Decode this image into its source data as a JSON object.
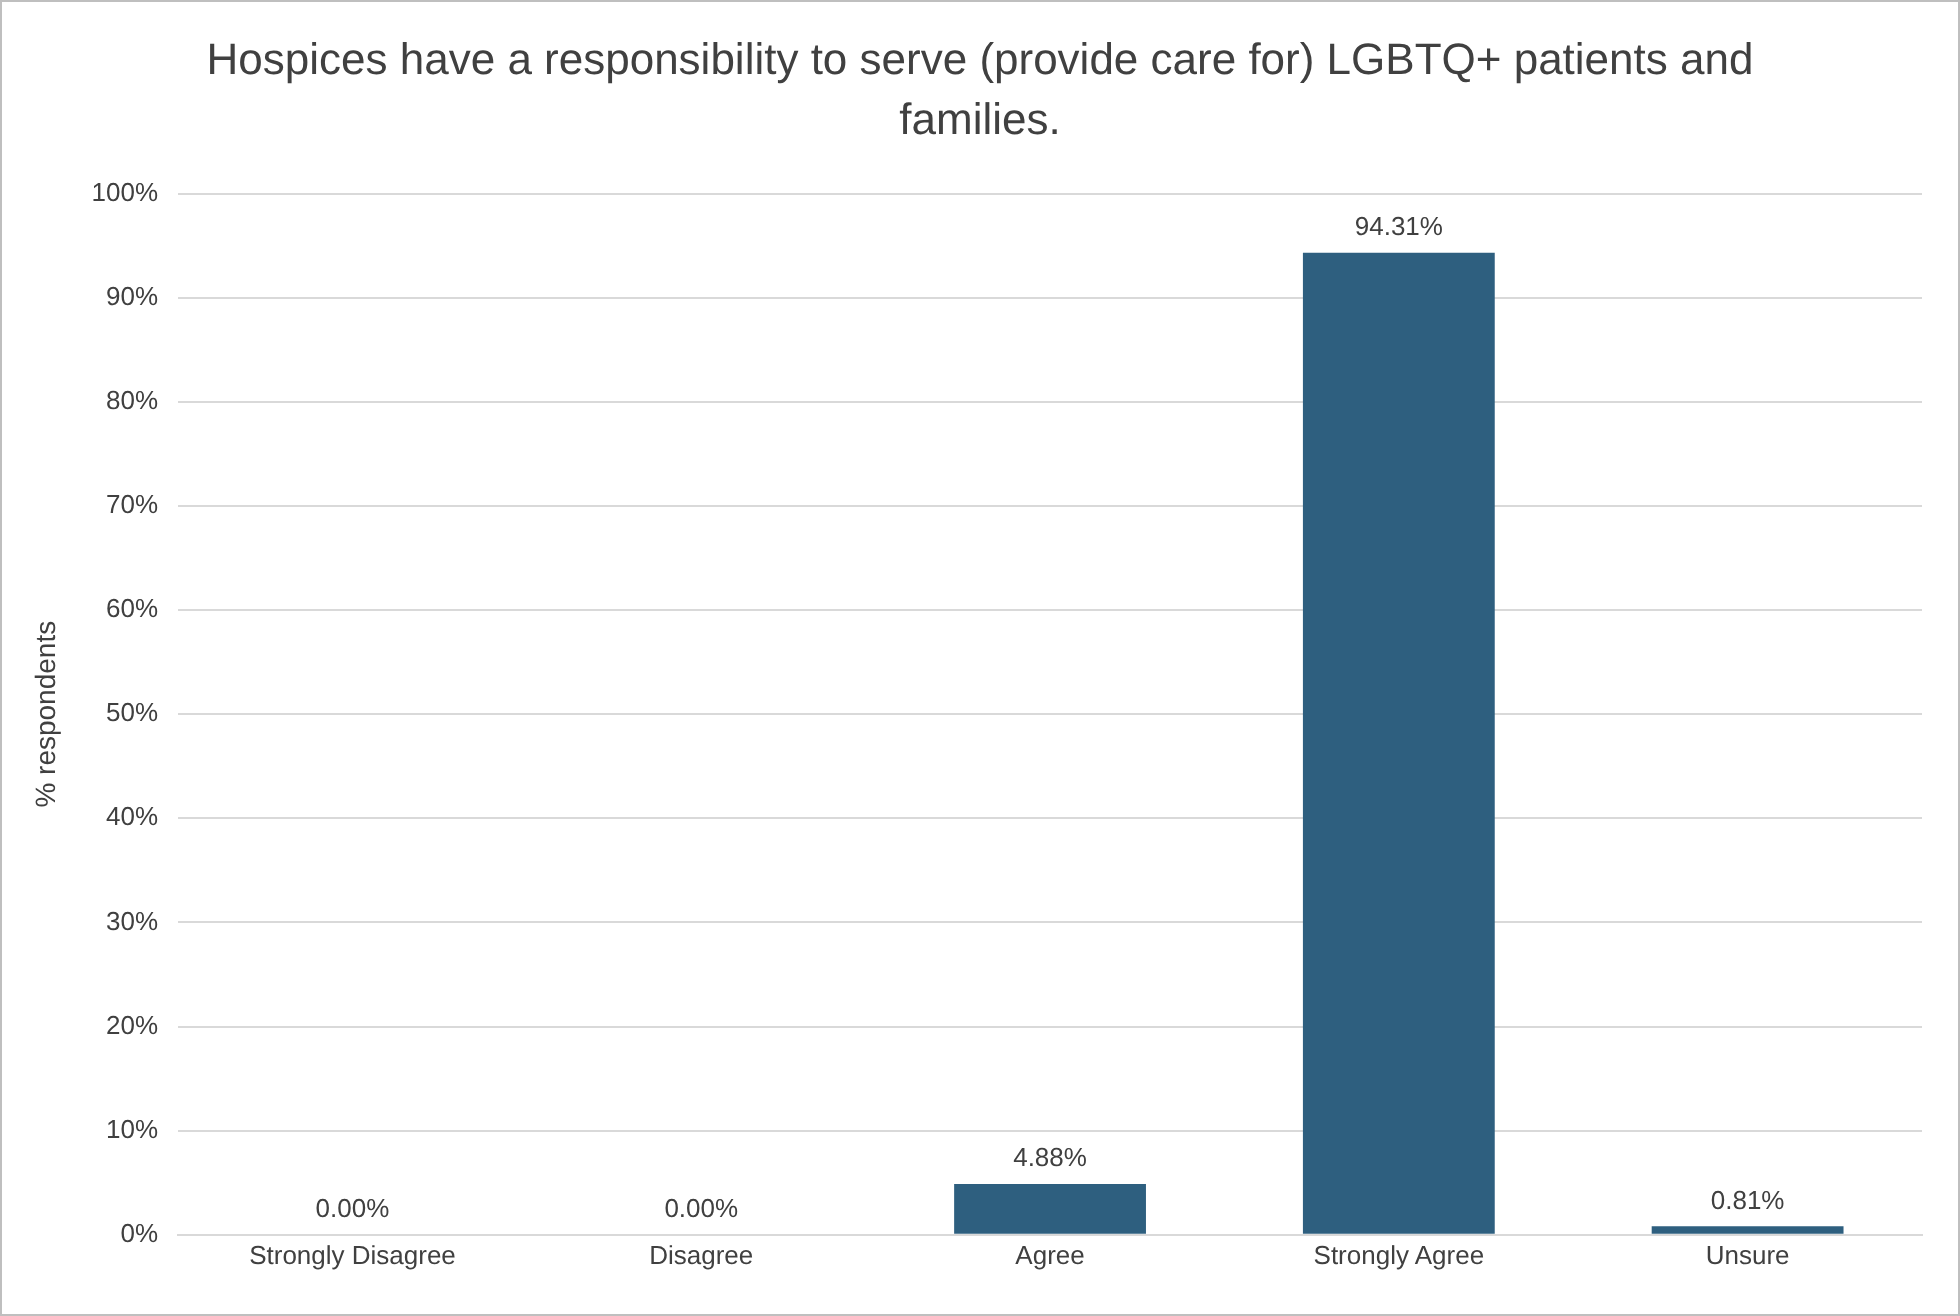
{
  "chart_data": {
    "type": "bar",
    "title": "Hospices have a responsibility to serve (provide care for) LGBTQ+ patients and families.",
    "ylabel": "% respondents",
    "categories": [
      "Strongly Disagree",
      "Disagree",
      "Agree",
      "Strongly Agree",
      "Unsure"
    ],
    "values": [
      0,
      0,
      4.88,
      94.31,
      0.81
    ],
    "value_labels": [
      "0.00%",
      "0.00%",
      "4.88%",
      "94.31%",
      "0.81%"
    ],
    "color": "#2e5f7f",
    "ylim": [
      0,
      100
    ],
    "yticks": [
      {
        "value": 0,
        "label": "0%"
      },
      {
        "value": 10,
        "label": "10%"
      },
      {
        "value": 20,
        "label": "20%"
      },
      {
        "value": 30,
        "label": "30%"
      },
      {
        "value": 40,
        "label": "40%"
      },
      {
        "value": 50,
        "label": "50%"
      },
      {
        "value": 60,
        "label": "60%"
      },
      {
        "value": 70,
        "label": "70%"
      },
      {
        "value": 80,
        "label": "80%"
      },
      {
        "value": 90,
        "label": "90%"
      },
      {
        "value": 100,
        "label": "100%"
      }
    ],
    "grid": "y",
    "legend": false
  }
}
